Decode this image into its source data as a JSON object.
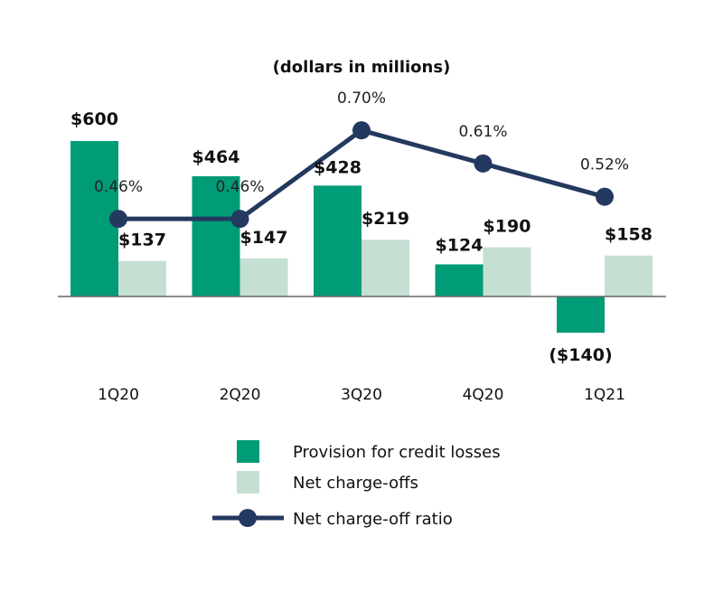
{
  "chart_data": {
    "type": "bar",
    "title": "(dollars in millions)",
    "categories": [
      "1Q20",
      "2Q20",
      "3Q20",
      "4Q20",
      "1Q21"
    ],
    "series": [
      {
        "name": "Provision for credit losses",
        "kind": "bar",
        "color": "#009B77",
        "values": [
          600,
          464,
          428,
          124,
          -140
        ],
        "labels": [
          "$600",
          "$464",
          "$428",
          "$124",
          "($140)"
        ]
      },
      {
        "name": "Net charge-offs",
        "kind": "bar",
        "color": "#C5DFD3",
        "values": [
          137,
          147,
          219,
          190,
          158
        ],
        "labels": [
          "$137",
          "$147",
          "$219",
          "$190",
          "$158"
        ]
      },
      {
        "name": "Net charge-off ratio",
        "kind": "line",
        "color": "#24395F",
        "values": [
          0.46,
          0.46,
          0.7,
          0.61,
          0.52
        ],
        "labels": [
          "0.46%",
          "0.46%",
          "0.70%",
          "0.61%",
          "0.52%"
        ]
      }
    ],
    "legend_position": "bottom-center",
    "grid": false
  }
}
